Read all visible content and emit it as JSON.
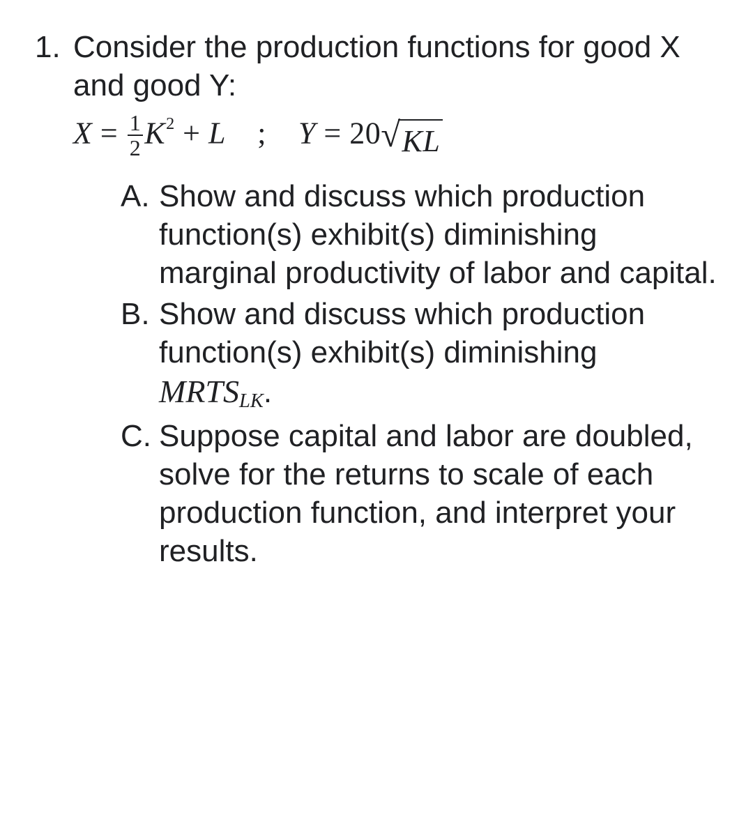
{
  "question": {
    "number": "1.",
    "stem": "Consider the production functions for good X and good Y:",
    "equation": {
      "x_lhs": "X",
      "equals": "=",
      "frac_num": "1",
      "frac_den": "2",
      "K": "K",
      "K_exp": "2",
      "plus": "+",
      "L": "L",
      "sep": ";",
      "y_lhs": "Y",
      "coef": "20",
      "radicand": "KL"
    },
    "parts": [
      {
        "label": "A.",
        "text": "Show and discuss which production function(s) exhibit(s) diminishing marginal productivity of labor and capital."
      },
      {
        "label": "B.",
        "text_before": "Show and discuss which production function(s) exhibit(s) diminishing ",
        "mrts_main": "MRTS",
        "mrts_sub": "LK",
        "text_after": "."
      },
      {
        "label": "C.",
        "text": "Suppose capital and labor are doubled, solve for the returns to scale of each production function, and interpret your results."
      }
    ]
  }
}
